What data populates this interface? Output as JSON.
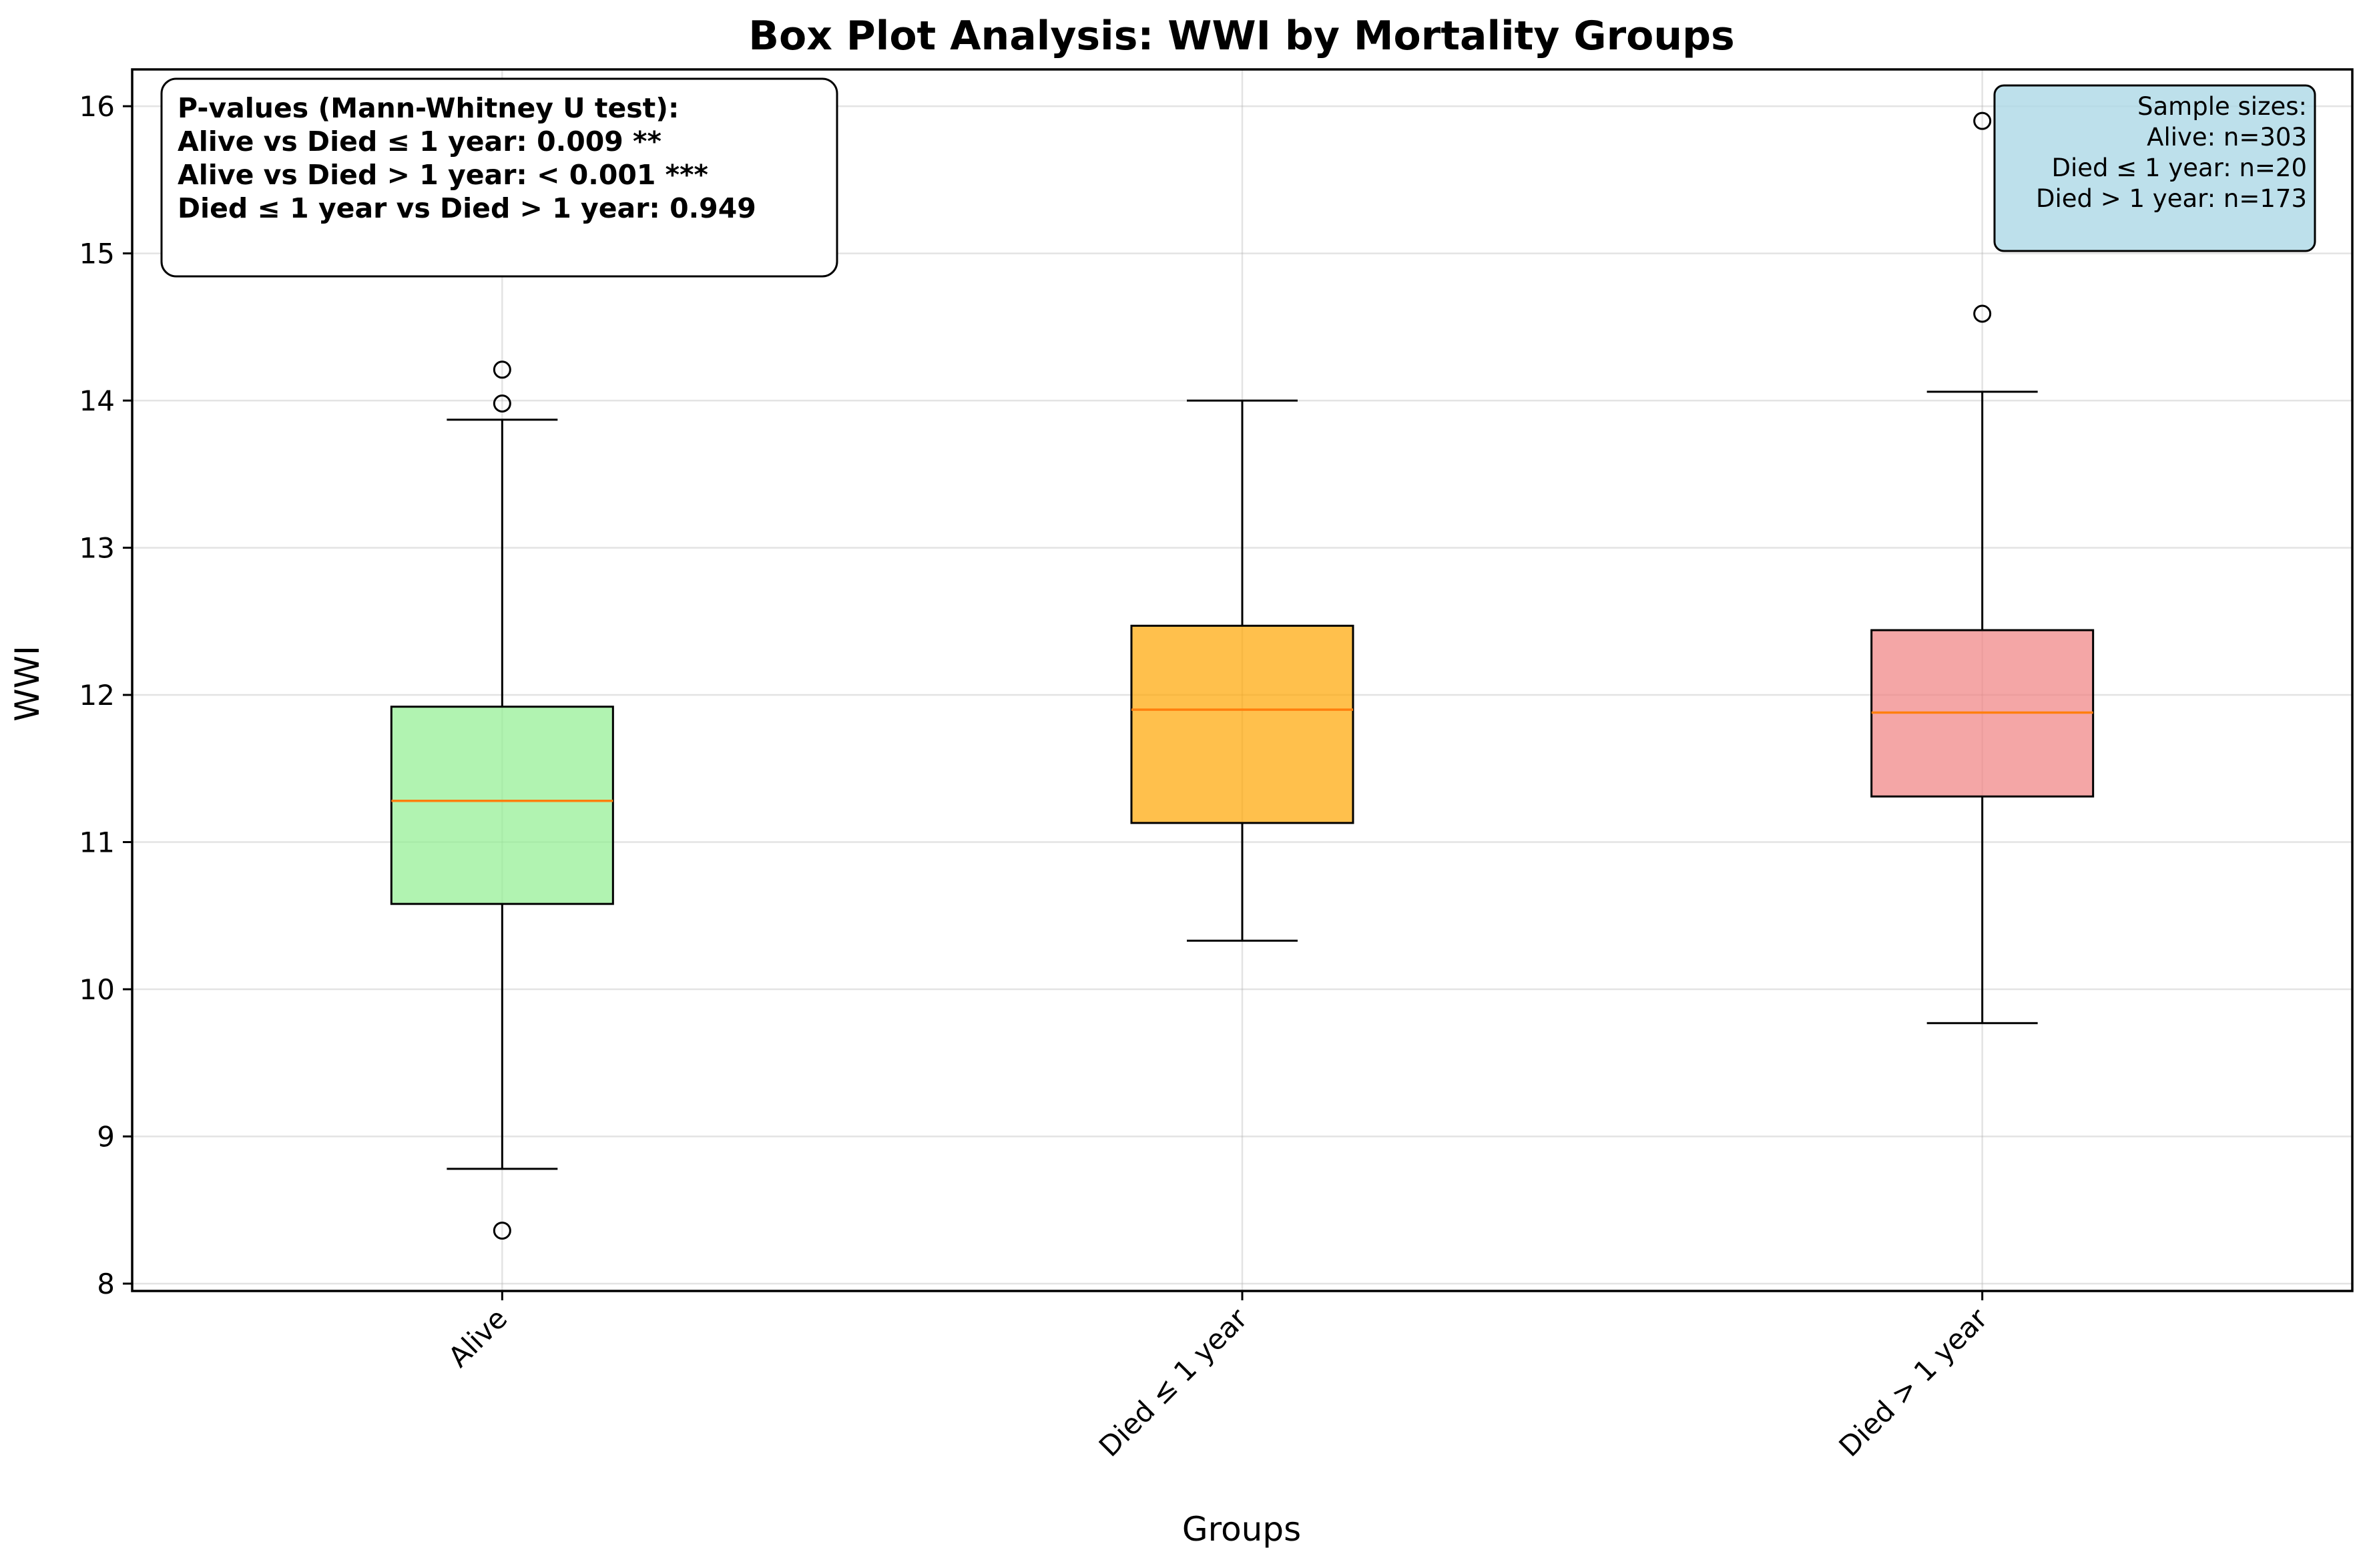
{
  "chart_data": {
    "type": "box",
    "title": "Box Plot Analysis: WWI by Mortality Groups",
    "xlabel": "Groups",
    "ylabel": "WWI",
    "ylim": [
      7.95,
      16.25
    ],
    "yticks": [
      8,
      9,
      10,
      11,
      12,
      13,
      14,
      15,
      16
    ],
    "grid": true,
    "categories": [
      "Alive",
      "Died ≤ 1 year",
      "Died > 1 year"
    ],
    "boxes": [
      {
        "category": "Alive",
        "whisker_low": 8.78,
        "q1": 10.58,
        "median": 11.28,
        "q3": 11.92,
        "whisker_high": 13.87,
        "outliers": [
          8.36,
          13.98,
          14.21
        ],
        "color": "#90ee90"
      },
      {
        "category": "Died ≤ 1 year",
        "whisker_low": 10.33,
        "q1": 11.13,
        "median": 11.9,
        "q3": 12.47,
        "whisker_high": 14.0,
        "outliers": [],
        "color": "#ffa500"
      },
      {
        "category": "Died > 1 year",
        "whisker_low": 9.77,
        "q1": 11.31,
        "median": 11.88,
        "q3": 12.44,
        "whisker_high": 14.06,
        "outliers": [
          14.59,
          15.9
        ],
        "color": "#f08080"
      }
    ],
    "annotations": {
      "pvalues": {
        "lines": [
          "P-values (Mann-Whitney U test):",
          "Alive vs Died ≤ 1 year: 0.009 **",
          "Alive vs Died > 1 year: < 0.001 ***",
          "Died ≤ 1 year vs Died > 1 year: 0.949"
        ],
        "placement": "top-left"
      },
      "sample_sizes": {
        "lines": [
          "Sample sizes:",
          "Alive: n=303",
          "Died ≤ 1 year: n=20",
          "Died > 1 year: n=173"
        ],
        "placement": "top-right",
        "background": "#add8e6"
      }
    },
    "median_color": "#ff7f0e"
  }
}
